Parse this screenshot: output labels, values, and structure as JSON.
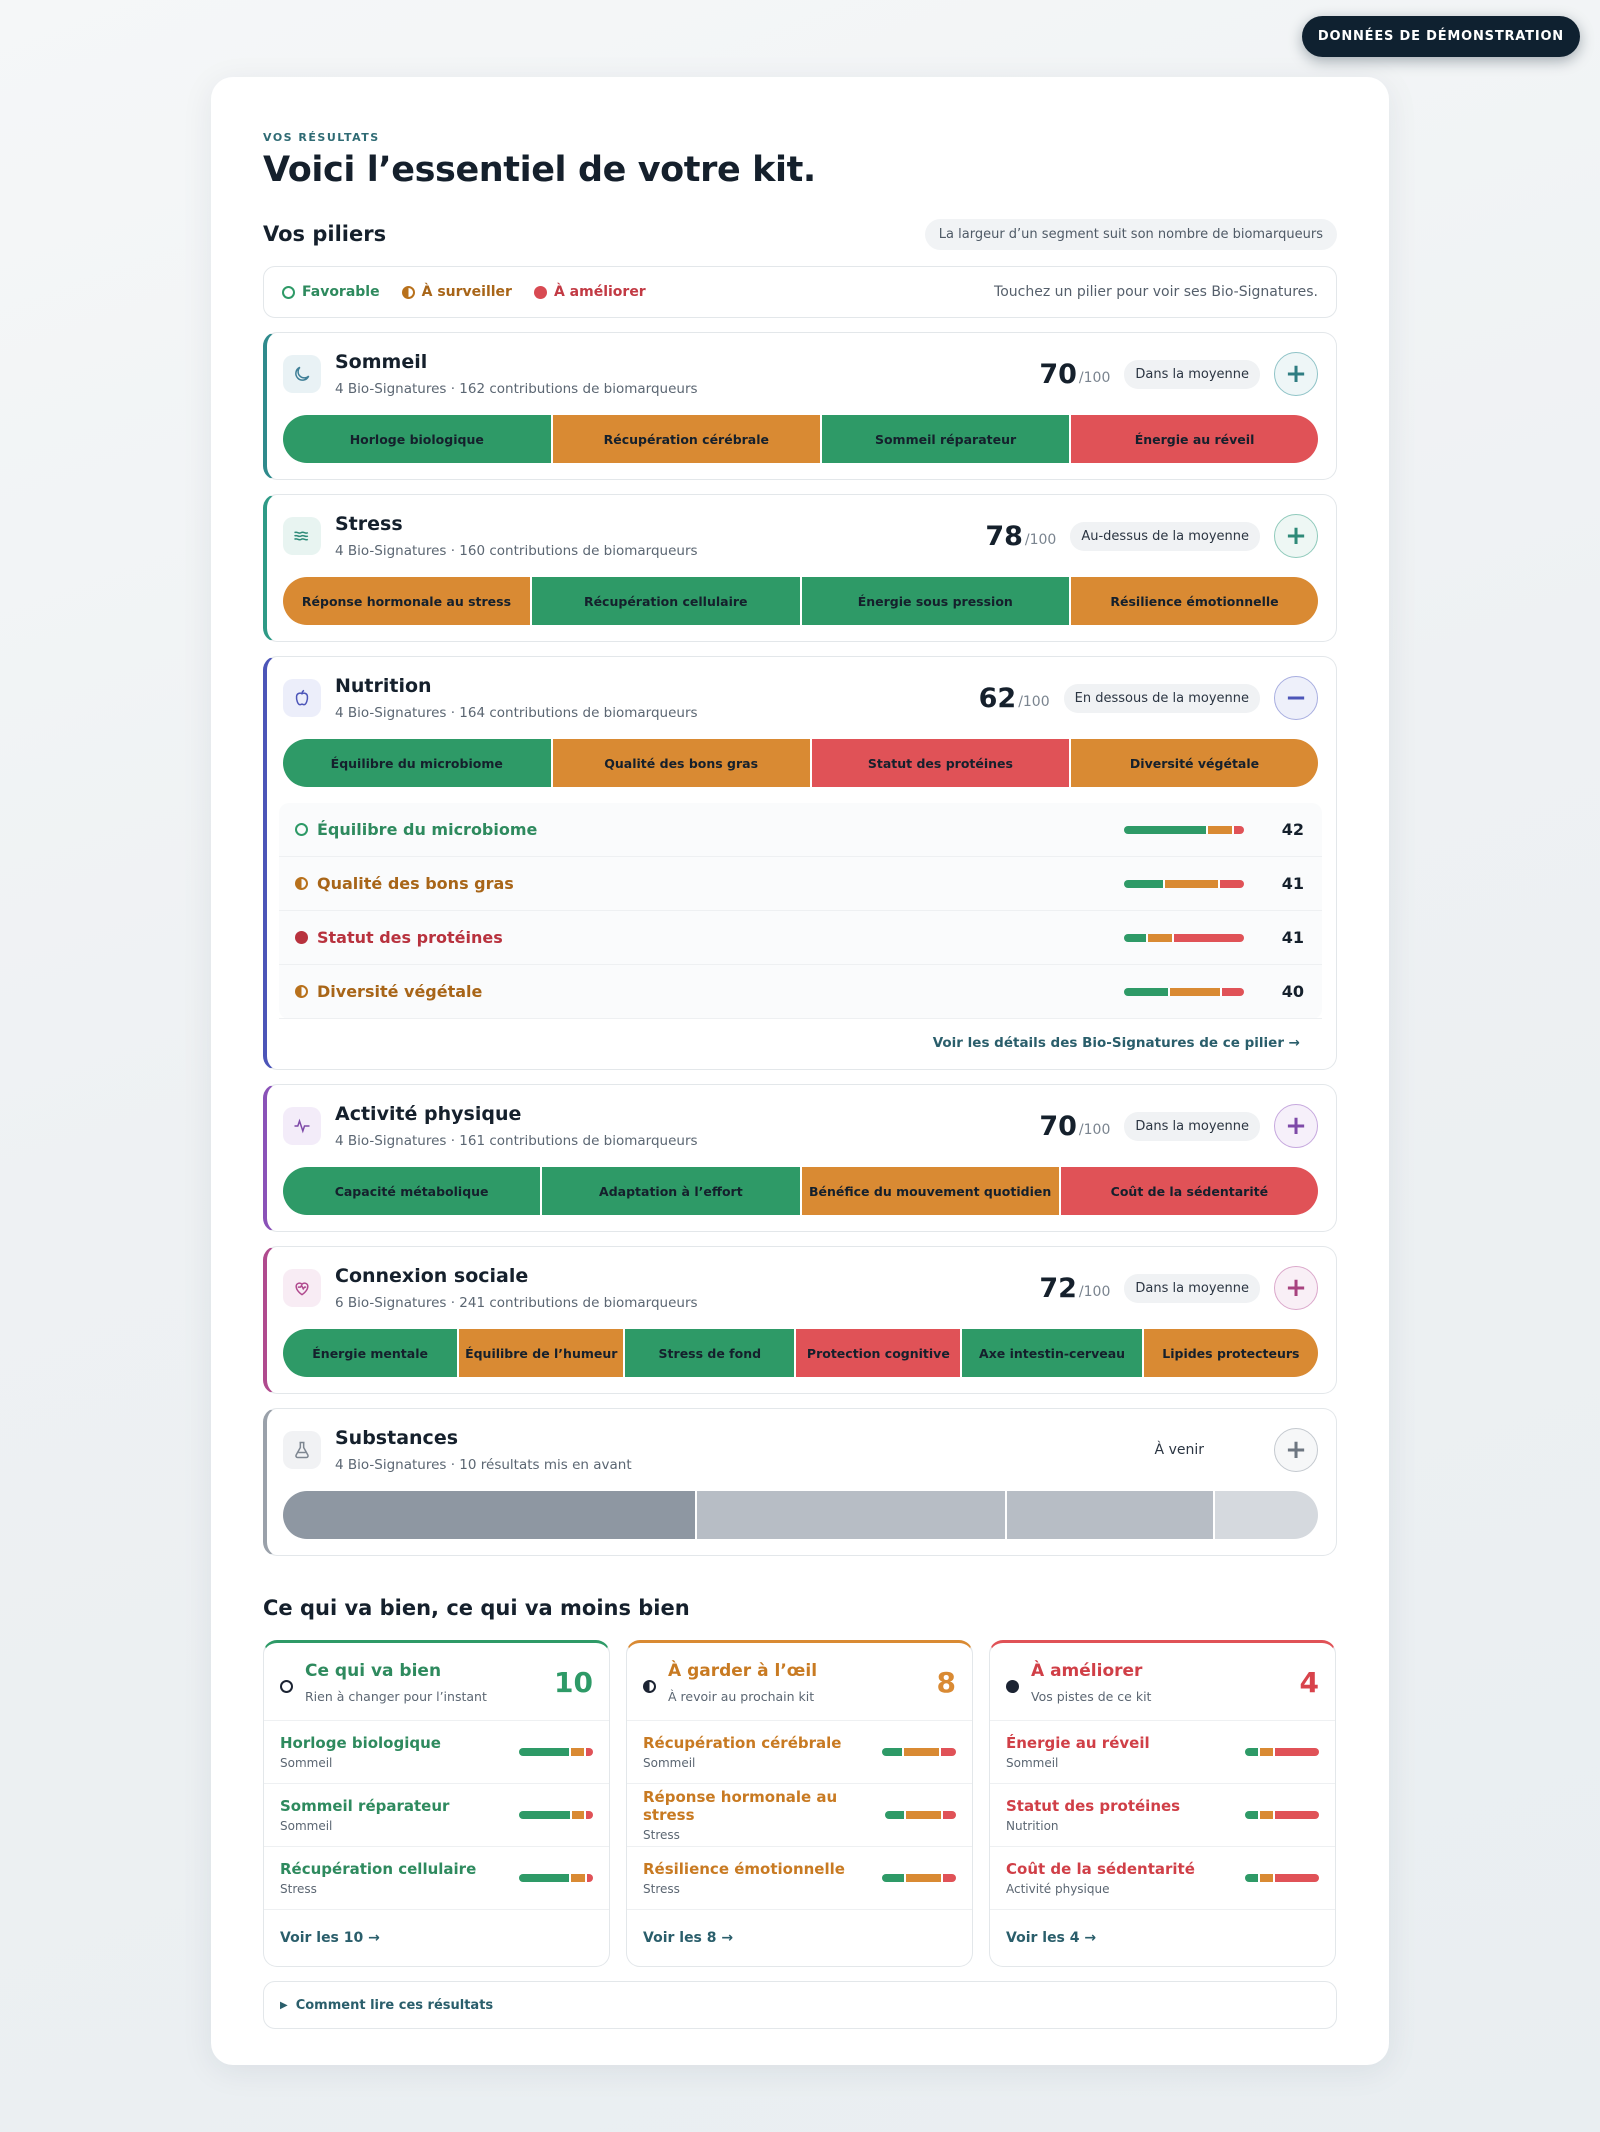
{
  "demo_badge": "DONNÉES DE DÉMONSTRATION",
  "eyebrow": "VOS RÉSULTATS",
  "title": "Voici l’essentiel de votre kit.",
  "pillars_title": "Vos piliers",
  "pillars_hint": "La largeur d’un segment suit son nombre de biomarqueurs",
  "legend": {
    "favorable": "Favorable",
    "watch": "À surveiller",
    "improve": "À améliorer",
    "hint": "Touchez un pilier pour voir ses Bio-Signatures."
  },
  "colors": {
    "green": "#2e9a67",
    "orange": "#d98a33",
    "red": "#e05257"
  },
  "pillars": [
    {
      "name": "Sommeil",
      "sub": "4 Bio-Signatures · 162 contributions de biomarqueurs",
      "score": "70",
      "max": "/100",
      "badge": "Dans la moyenne",
      "toggle": "+",
      "icon": "moon-icon",
      "segments": [
        {
          "label": "Horloge biologique",
          "status": "green",
          "weight": 26
        },
        {
          "label": "Récupération cérébrale",
          "status": "orange",
          "weight": 26
        },
        {
          "label": "Sommeil réparateur",
          "status": "green",
          "weight": 24
        },
        {
          "label": "Énergie au réveil",
          "status": "red",
          "weight": 24
        }
      ]
    },
    {
      "name": "Stress",
      "sub": "4 Bio-Signatures · 160 contributions de biomarqueurs",
      "score": "78",
      "max": "/100",
      "badge": "Au-dessus de la moyenne",
      "toggle": "+",
      "icon": "waves-icon",
      "segments": [
        {
          "label": "Réponse hormonale au stress",
          "status": "orange",
          "weight": 24
        },
        {
          "label": "Récupération cellulaire",
          "status": "green",
          "weight": 26
        },
        {
          "label": "Énergie sous pression",
          "status": "green",
          "weight": 26
        },
        {
          "label": "Résilience émotionnelle",
          "status": "orange",
          "weight": 24
        }
      ]
    },
    {
      "name": "Nutrition",
      "sub": "4 Bio-Signatures · 164 contributions de biomarqueurs",
      "score": "62",
      "max": "/100",
      "badge": "En dessous de la moyenne",
      "toggle": "−",
      "icon": "apple-icon",
      "segments": [
        {
          "label": "Équilibre du microbiome",
          "status": "green",
          "weight": 26
        },
        {
          "label": "Qualité des bons gras",
          "status": "orange",
          "weight": 25
        },
        {
          "label": "Statut des protéines",
          "status": "red",
          "weight": 25
        },
        {
          "label": "Diversité végétale",
          "status": "orange",
          "weight": 24
        }
      ],
      "signatures": [
        {
          "name": "Équilibre du microbiome",
          "status": "favorable",
          "score": "42",
          "mix": [
            0.7,
            0.22,
            0.08
          ]
        },
        {
          "name": "Qualité des bons gras",
          "status": "watch",
          "score": "41",
          "mix": [
            0.34,
            0.46,
            0.2
          ]
        },
        {
          "name": "Statut des protéines",
          "status": "improve",
          "score": "41",
          "mix": [
            0.2,
            0.22,
            0.58
          ]
        },
        {
          "name": "Diversité végétale",
          "status": "watch",
          "score": "40",
          "mix": [
            0.38,
            0.44,
            0.18
          ]
        }
      ],
      "details_link": "Voir les détails des Bio-Signatures de ce pilier →"
    },
    {
      "name": "Activité physique",
      "sub": "4 Bio-Signatures · 161 contributions de biomarqueurs",
      "score": "70",
      "max": "/100",
      "badge": "Dans la moyenne",
      "toggle": "+",
      "icon": "pulse-icon",
      "segments": [
        {
          "label": "Capacité métabolique",
          "status": "green",
          "weight": 25
        },
        {
          "label": "Adaptation à l’effort",
          "status": "green",
          "weight": 25
        },
        {
          "label": "Bénéfice du mouvement quotidien",
          "status": "orange",
          "weight": 25
        },
        {
          "label": "Coût de la sédentarité",
          "status": "red",
          "weight": 25
        }
      ]
    },
    {
      "name": "Connexion sociale",
      "sub": "6 Bio-Signatures · 241 contributions de biomarqueurs",
      "score": "72",
      "max": "/100",
      "badge": "Dans la moyenne",
      "toggle": "+",
      "icon": "heart-icon",
      "segments": [
        {
          "label": "Énergie mentale",
          "status": "green",
          "weight": 17
        },
        {
          "label": "Équilibre de l’humeur",
          "status": "orange",
          "weight": 16
        },
        {
          "label": "Stress de fond",
          "status": "green",
          "weight": 16.5
        },
        {
          "label": "Protection cognitive",
          "status": "red",
          "weight": 16
        },
        {
          "label": "Axe intestin-cerveau",
          "status": "green",
          "weight": 17.5
        },
        {
          "label": "Lipides protecteurs",
          "status": "orange",
          "weight": 17
        }
      ]
    },
    {
      "name": "Substances",
      "sub": "4 Bio-Signatures · 10 résultats mis en avant",
      "score": "",
      "max": "",
      "badge": "À venir",
      "toggle": "+",
      "icon": "flask-icon",
      "segments": [
        {
          "label": "",
          "status": "gray1",
          "weight": 40
        },
        {
          "label": "",
          "status": "gray2",
          "weight": 30
        },
        {
          "label": "",
          "status": "gray2",
          "weight": 20
        },
        {
          "label": "",
          "status": "gray3",
          "weight": 10
        }
      ]
    }
  ],
  "bilan_title": "Ce qui va bien, ce qui va moins bien",
  "columns": [
    {
      "title": "Ce qui va bien",
      "sub": "Rien à changer pour l’instant",
      "count": "10",
      "tone": "favorable",
      "items": [
        {
          "name": "Horloge biologique",
          "pillar": "Sommeil",
          "mix": [
            0.7,
            0.2,
            0.1
          ]
        },
        {
          "name": "Sommeil réparateur",
          "pillar": "Sommeil",
          "mix": [
            0.72,
            0.18,
            0.1
          ]
        },
        {
          "name": "Récupération cellulaire",
          "pillar": "Stress",
          "mix": [
            0.7,
            0.22,
            0.08
          ]
        }
      ],
      "more": "Voir les 10 →"
    },
    {
      "title": "À garder à l’œil",
      "sub": "À revoir au prochain kit",
      "count": "8",
      "tone": "watch",
      "items": [
        {
          "name": "Récupération cérébrale",
          "pillar": "Sommeil",
          "mix": [
            0.3,
            0.5,
            0.2
          ]
        },
        {
          "name": "Réponse hormonale au stress",
          "pillar": "Stress",
          "mix": [
            0.3,
            0.52,
            0.18
          ]
        },
        {
          "name": "Résilience émotionnelle",
          "pillar": "Stress",
          "mix": [
            0.32,
            0.5,
            0.18
          ]
        }
      ],
      "more": "Voir les 8 →"
    },
    {
      "title": "À améliorer",
      "sub": "Vos pistes de ce kit",
      "count": "4",
      "tone": "improve",
      "items": [
        {
          "name": "Énergie au réveil",
          "pillar": "Sommeil",
          "mix": [
            0.2,
            0.2,
            0.6
          ]
        },
        {
          "name": "Statut des protéines",
          "pillar": "Nutrition",
          "mix": [
            0.2,
            0.2,
            0.6
          ]
        },
        {
          "name": "Coût de la sédentarité",
          "pillar": "Activité physique",
          "mix": [
            0.2,
            0.2,
            0.6
          ]
        }
      ],
      "more": "Voir les 4 →"
    }
  ],
  "howto": "Comment lire ces résultats"
}
